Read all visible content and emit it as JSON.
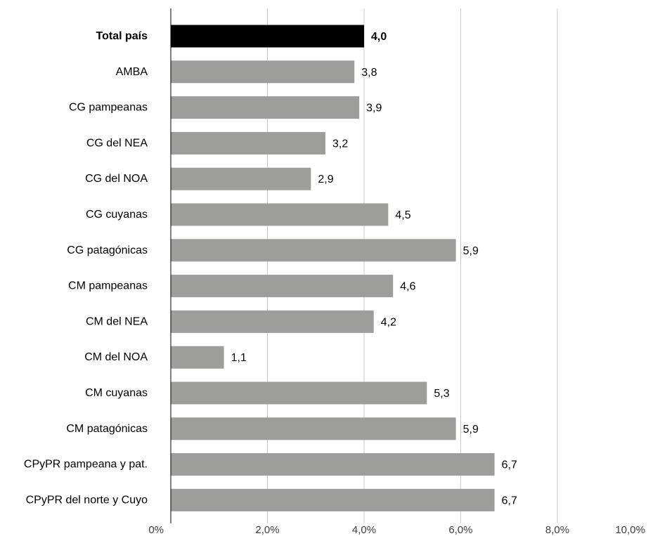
{
  "chart_data": {
    "type": "bar",
    "orientation": "horizontal",
    "title": "",
    "xlabel": "",
    "ylabel": "",
    "categories": [
      "Total país",
      "AMBA",
      "CG pampeanas",
      "CG del NEA",
      "CG del NOA",
      "CG cuyanas",
      "CG patagónicas",
      "CM pampeanas",
      "CM del NEA",
      "CM del NOA",
      "CM cuyanas",
      "CM patagónicas",
      "CPyPR pampeana y pat.",
      "CPyPR del norte y Cuyo"
    ],
    "values": [
      4.0,
      3.8,
      3.9,
      3.2,
      2.9,
      4.5,
      5.9,
      4.6,
      4.2,
      1.1,
      5.3,
      5.9,
      6.7,
      6.7
    ],
    "value_labels": [
      "4,0",
      "3,8",
      "3,9",
      "3,2",
      "2,9",
      "4,5",
      "5,9",
      "4,6",
      "4,2",
      "1,1",
      "5,3",
      "5,9",
      "6,7",
      "6,7"
    ],
    "highlight_index": 0,
    "xlim": [
      0,
      10
    ],
    "xticks": [
      0,
      2,
      4,
      6,
      8,
      10
    ],
    "xtick_labels": [
      "0%",
      "2,0%",
      "4,0%",
      "6,0%",
      "8,0%",
      "10,0%"
    ],
    "grid": true,
    "legend": "none",
    "colors": {
      "bar": "#9d9d9b",
      "highlight": "#000000",
      "grid": "#c8c8c8",
      "axis": "#000000"
    }
  }
}
